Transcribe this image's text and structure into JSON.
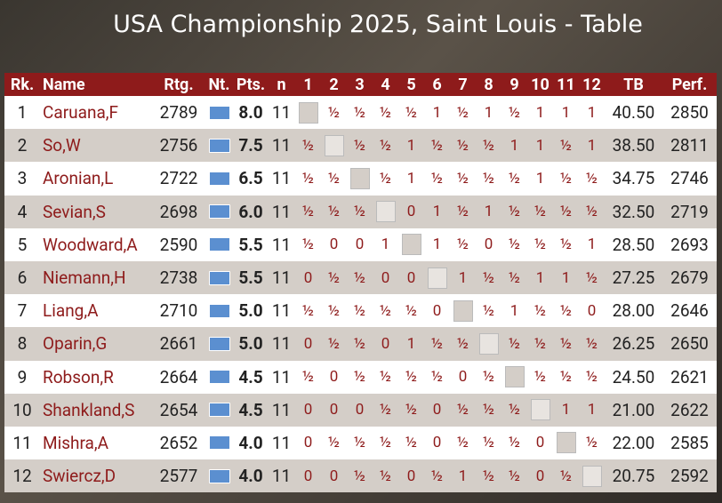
{
  "header": {
    "title": "USA Championship 2025, Saint Louis - Table"
  },
  "table": {
    "columns": [
      "Rk.",
      "Name",
      "Rtg.",
      "Nt.",
      "Pts.",
      "n",
      "1",
      "2",
      "3",
      "4",
      "5",
      "6",
      "7",
      "8",
      "9",
      "10",
      "11",
      "12",
      "TB",
      "Perf."
    ],
    "rows": [
      {
        "rank": 1,
        "name": "Caruana,F",
        "rating": 2789,
        "points": "8.0",
        "games": 11,
        "results": [
          null,
          "½",
          "½",
          "½",
          "½",
          "1",
          "½",
          "1",
          "½",
          "1",
          "1",
          "1"
        ],
        "tb": "40.50",
        "perf": 2850
      },
      {
        "rank": 2,
        "name": "So,W",
        "rating": 2756,
        "points": "7.5",
        "games": 11,
        "results": [
          "½",
          null,
          "½",
          "½",
          "1",
          "½",
          "½",
          "½",
          "1",
          "1",
          "½",
          "1"
        ],
        "tb": "38.50",
        "perf": 2811
      },
      {
        "rank": 3,
        "name": "Aronian,L",
        "rating": 2722,
        "points": "6.5",
        "games": 11,
        "results": [
          "½",
          "½",
          null,
          "½",
          "1",
          "½",
          "½",
          "½",
          "½",
          "1",
          "½",
          "½"
        ],
        "tb": "34.75",
        "perf": 2746
      },
      {
        "rank": 4,
        "name": "Sevian,S",
        "rating": 2698,
        "points": "6.0",
        "games": 11,
        "results": [
          "½",
          "½",
          "½",
          null,
          "0",
          "1",
          "½",
          "1",
          "½",
          "½",
          "½",
          "½"
        ],
        "tb": "32.50",
        "perf": 2719
      },
      {
        "rank": 5,
        "name": "Woodward,A",
        "rating": 2590,
        "points": "5.5",
        "games": 11,
        "results": [
          "½",
          "0",
          "0",
          "1",
          null,
          "1",
          "½",
          "0",
          "½",
          "½",
          "½",
          "1"
        ],
        "tb": "28.50",
        "perf": 2693
      },
      {
        "rank": 6,
        "name": "Niemann,H",
        "rating": 2738,
        "points": "5.5",
        "games": 11,
        "results": [
          "0",
          "½",
          "½",
          "0",
          "0",
          null,
          "1",
          "½",
          "½",
          "1",
          "1",
          "½"
        ],
        "tb": "27.25",
        "perf": 2679
      },
      {
        "rank": 7,
        "name": "Liang,A",
        "rating": 2710,
        "points": "5.0",
        "games": 11,
        "results": [
          "½",
          "½",
          "½",
          "½",
          "½",
          "0",
          null,
          "½",
          "1",
          "½",
          "½",
          "0"
        ],
        "tb": "28.00",
        "perf": 2646
      },
      {
        "rank": 8,
        "name": "Oparin,G",
        "rating": 2661,
        "points": "5.0",
        "games": 11,
        "results": [
          "0",
          "½",
          "½",
          "0",
          "1",
          "½",
          "½",
          null,
          "½",
          "½",
          "½",
          "½"
        ],
        "tb": "26.25",
        "perf": 2650
      },
      {
        "rank": 9,
        "name": "Robson,R",
        "rating": 2664,
        "points": "4.5",
        "games": 11,
        "results": [
          "½",
          "0",
          "½",
          "½",
          "½",
          "½",
          "0",
          "½",
          null,
          "½",
          "½",
          "½"
        ],
        "tb": "24.50",
        "perf": 2621
      },
      {
        "rank": 10,
        "name": "Shankland,S",
        "rating": 2654,
        "points": "4.5",
        "games": 11,
        "results": [
          "0",
          "0",
          "0",
          "½",
          "½",
          "0",
          "½",
          "½",
          "½",
          null,
          "1",
          "1"
        ],
        "tb": "21.00",
        "perf": 2622
      },
      {
        "rank": 11,
        "name": "Mishra,A",
        "rating": 2652,
        "points": "4.0",
        "games": 11,
        "results": [
          "0",
          "½",
          "½",
          "½",
          "½",
          "0",
          "½",
          "½",
          "½",
          "0",
          null,
          "½"
        ],
        "tb": "22.00",
        "perf": 2585
      },
      {
        "rank": 12,
        "name": "Swiercz,D",
        "rating": 2577,
        "points": "4.0",
        "games": 11,
        "results": [
          "0",
          "0",
          "½",
          "½",
          "0",
          "½",
          "1",
          "½",
          "½",
          "0",
          "½",
          null
        ],
        "tb": "20.75",
        "perf": 2592
      }
    ]
  }
}
